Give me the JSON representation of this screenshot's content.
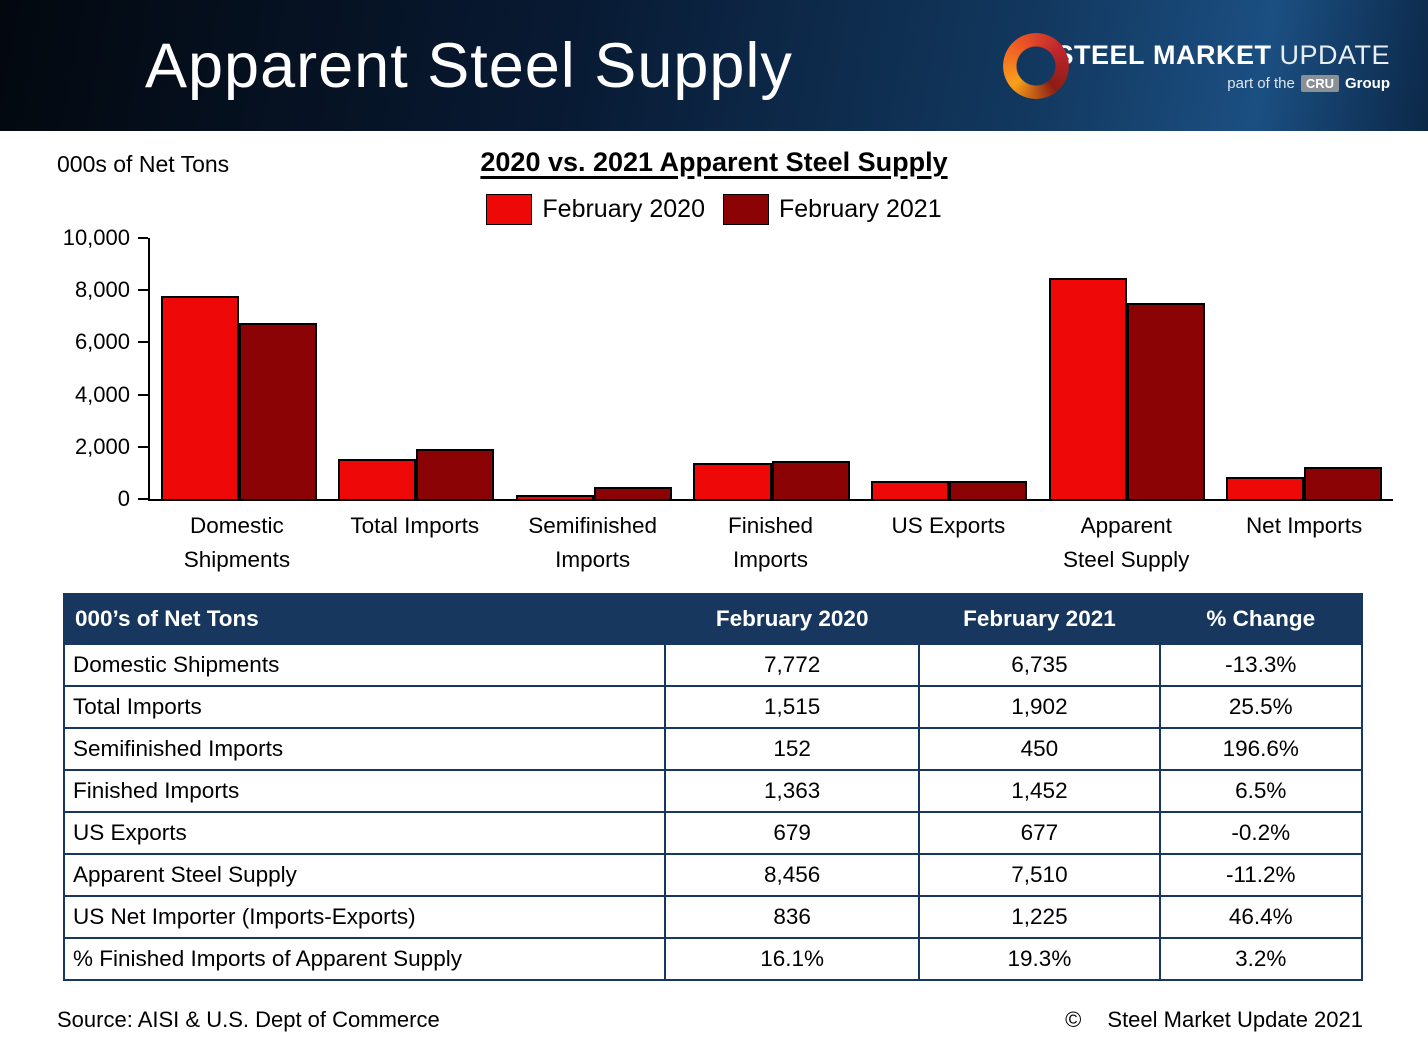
{
  "header": {
    "title": "Apparent Steel Supply",
    "logo": {
      "steel": "STEEL",
      "market": "MARKET",
      "update": "UPDATE",
      "tagline_prefix": "part of the",
      "tagline_cru": "CRU",
      "tagline_suffix": "Group"
    }
  },
  "chart": {
    "units_label": "000s of Net Tons",
    "title": "2020 vs. 2021 Apparent Steel Supply",
    "category_display": [
      "Domestic\nShipments",
      "Total Imports",
      "Semifinished\nImports",
      "Finished\nImports",
      "US Exports",
      "Apparent\nSteel Supply",
      "Net Imports"
    ]
  },
  "chart_data": {
    "type": "bar",
    "title": "2020 vs. 2021 Apparent Steel Supply",
    "categories": [
      "Domestic Shipments",
      "Total Imports",
      "Semifinished Imports",
      "Finished Imports",
      "US Exports",
      "Apparent Steel Supply",
      "Net Imports"
    ],
    "series": [
      {
        "name": "February 2020",
        "color": "#ee0808",
        "values": [
          7772,
          1515,
          152,
          1363,
          679,
          8456,
          836
        ]
      },
      {
        "name": "February 2021",
        "color": "#8b0304",
        "values": [
          6735,
          1902,
          450,
          1452,
          677,
          7510,
          1225
        ]
      }
    ],
    "ylabel": "000s of Net Tons",
    "xlabel": "",
    "ylim": [
      0,
      10000
    ],
    "yticks": [
      0,
      2000,
      4000,
      6000,
      8000,
      10000
    ],
    "legend_position": "top",
    "grid": false
  },
  "colors": {
    "series_2020": "#ee0808",
    "series_2021": "#8b0304",
    "table_header_bg": "#17375e",
    "header_banner": "#0a1f3c"
  },
  "table": {
    "headers": [
      "000’s of Net Tons",
      "February 2020",
      "February 2021",
      "% Change"
    ],
    "col_widths_pct": [
      46.3,
      19.6,
      18.5,
      15.6
    ],
    "rows": [
      [
        "Domestic Shipments",
        "7,772",
        "6,735",
        "-13.3%"
      ],
      [
        "Total Imports",
        "1,515",
        "1,902",
        "25.5%"
      ],
      [
        "Semifinished Imports",
        "152",
        "450",
        "196.6%"
      ],
      [
        "Finished Imports",
        "1,363",
        "1,452",
        "6.5%"
      ],
      [
        "US Exports",
        "679",
        "677",
        "-0.2%"
      ],
      [
        "Apparent Steel Supply",
        "8,456",
        "7,510",
        "-11.2%"
      ],
      [
        "US Net Importer (Imports-Exports)",
        "836",
        "1,225",
        "46.4%"
      ],
      [
        "% Finished Imports of Apparent Supply",
        "16.1%",
        "19.3%",
        "3.2%"
      ]
    ]
  },
  "footer": {
    "source": "Source:  AISI & U.S. Dept of Commerce",
    "copyright_symbol": "©",
    "copyright_text": "Steel Market Update 2021"
  }
}
